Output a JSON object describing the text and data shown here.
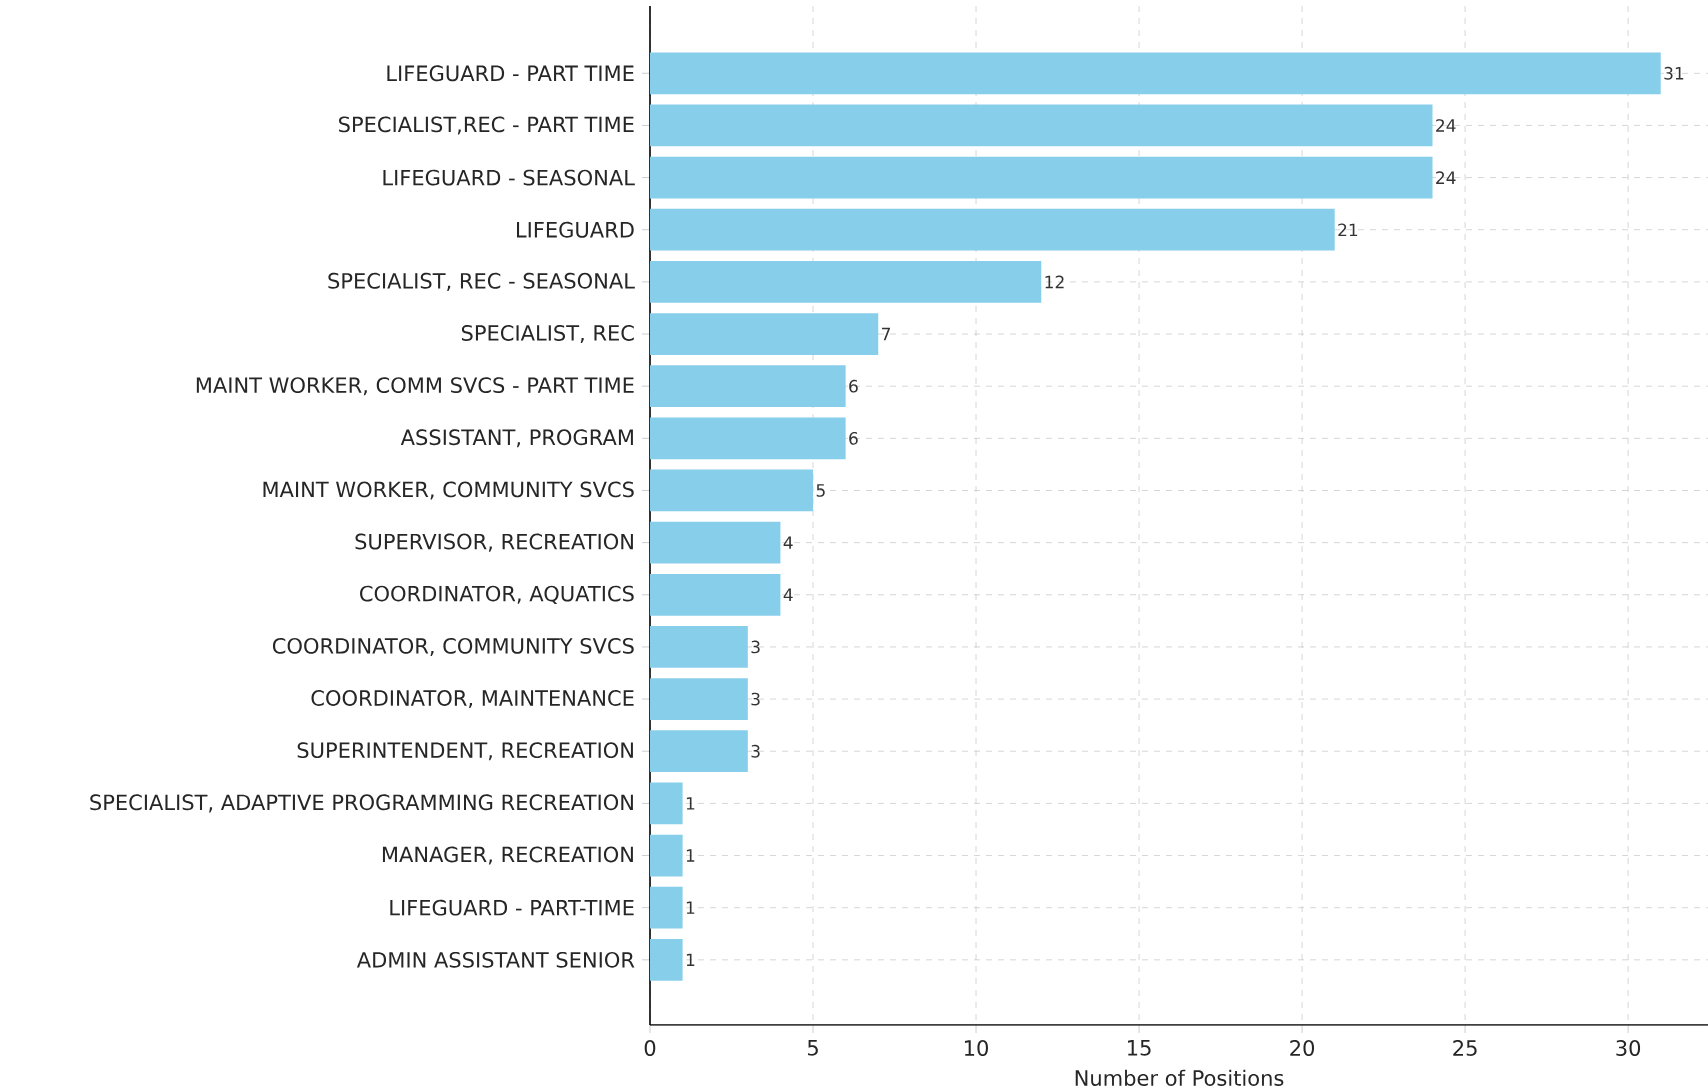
{
  "chart_data": {
    "type": "bar",
    "orientation": "horizontal",
    "xlabel": "Number of Positions",
    "categories": [
      "LIFEGUARD - PART TIME",
      "SPECIALIST,REC  - PART TIME",
      "LIFEGUARD - SEASONAL",
      "LIFEGUARD",
      "SPECIALIST, REC - SEASONAL",
      "SPECIALIST, REC",
      "MAINT WORKER, COMM SVCS - PART TIME",
      "ASSISTANT, PROGRAM",
      "MAINT WORKER, COMMUNITY SVCS",
      "SUPERVISOR, RECREATION",
      "COORDINATOR, AQUATICS",
      "COORDINATOR, COMMUNITY SVCS",
      "COORDINATOR, MAINTENANCE",
      "SUPERINTENDENT, RECREATION",
      "SPECIALIST, ADAPTIVE PROGRAMMING RECREATION",
      "MANAGER, RECREATION",
      "LIFEGUARD - PART-TIME",
      "ADMIN ASSISTANT SENIOR"
    ],
    "values": [
      31,
      24,
      24,
      21,
      12,
      7,
      6,
      6,
      5,
      4,
      4,
      3,
      3,
      3,
      1,
      1,
      1,
      1
    ],
    "color": "#87ceeb",
    "xlim": [
      0,
      32.45
    ],
    "xticks": [
      0,
      5,
      10,
      15,
      20,
      25,
      30
    ],
    "grid": true,
    "data_labels": true
  }
}
